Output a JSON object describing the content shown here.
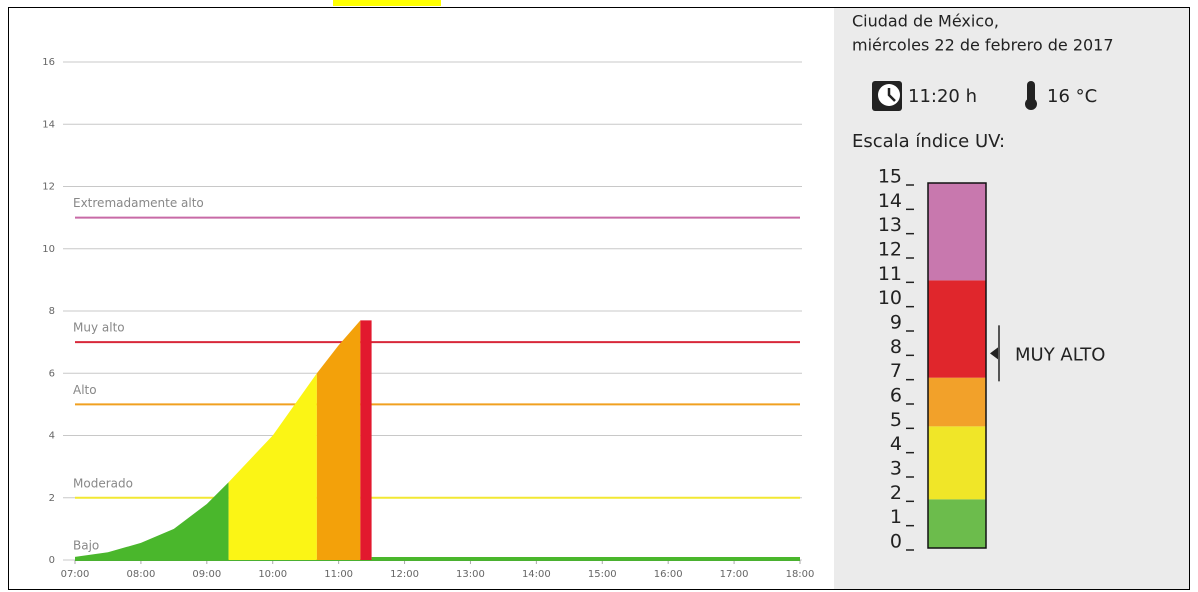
{
  "chart_data": {
    "type": "area",
    "xlim": [
      7,
      18
    ],
    "ylim": [
      0,
      16
    ],
    "xticks": [
      {
        "value": 7,
        "label": "07:00"
      },
      {
        "value": 8,
        "label": "08:00"
      },
      {
        "value": 9,
        "label": "09:00"
      },
      {
        "value": 10,
        "label": "10:00"
      },
      {
        "value": 11,
        "label": "11:00"
      },
      {
        "value": 12,
        "label": "12:00"
      },
      {
        "value": 13,
        "label": "13:00"
      },
      {
        "value": 14,
        "label": "14:00"
      },
      {
        "value": 15,
        "label": "15:00"
      },
      {
        "value": 16,
        "label": "16:00"
      },
      {
        "value": 17,
        "label": "17:00"
      },
      {
        "value": 18,
        "label": "18:00"
      }
    ],
    "yticks": [
      0,
      2,
      4,
      6,
      8,
      10,
      12,
      14,
      16
    ],
    "grid": true,
    "thresholds": [
      {
        "label": "Extremadamente alto",
        "value": 11,
        "color": "#c86aa6"
      },
      {
        "label": "Muy alto",
        "value": 7,
        "color": "#d8283a"
      },
      {
        "label": "Alto",
        "value": 5,
        "color": "#f0a020"
      },
      {
        "label": "Moderado",
        "value": 2,
        "color": "#f2e832"
      },
      {
        "label": "Bajo",
        "value": 0,
        "color": "#4ab030"
      }
    ],
    "series": [
      {
        "color": "#4ab72c",
        "x": [
          7,
          7.5,
          8,
          8.5,
          9,
          9.33
        ],
        "values": [
          0.1,
          0.25,
          0.55,
          1.0,
          1.8,
          2.5
        ]
      },
      {
        "color": "#fbf515",
        "x": [
          9.33,
          10,
          10.67
        ],
        "values": [
          2.5,
          4.0,
          6.0
        ]
      },
      {
        "color": "#f3a10a",
        "x": [
          10.67,
          11,
          11.33
        ],
        "values": [
          6.0,
          6.9,
          7.7
        ]
      },
      {
        "color": "#e2192e",
        "x": [
          11.33,
          11.5
        ],
        "values": [
          7.7,
          7.7
        ]
      },
      {
        "color": "#4ab72c",
        "kind": "line",
        "x": [
          11.5,
          18
        ],
        "values": [
          0.05,
          0.05
        ]
      }
    ]
  },
  "panel": {
    "city": "Ciudad de México,",
    "date": "miércoles 22 de febrero de 2017",
    "time": "11:20 h",
    "temperature": "16 °C",
    "scale_title": "Escala índice UV:",
    "scale_lim": [
      0,
      15
    ],
    "scale_ticks": [
      0,
      1,
      2,
      3,
      4,
      5,
      6,
      7,
      8,
      9,
      10,
      11,
      12,
      13,
      14,
      15
    ],
    "bands": [
      {
        "from": 0,
        "to": 2,
        "color": "#6cbc4c"
      },
      {
        "from": 2,
        "to": 5,
        "color": "#f0e628"
      },
      {
        "from": 5,
        "to": 7,
        "color": "#f2a12a"
      },
      {
        "from": 7,
        "to": 11,
        "color": "#e0262c"
      },
      {
        "from": 11,
        "to": 15,
        "color": "#c878ae"
      }
    ],
    "indicator": {
      "label": "MUY ALTO",
      "value": 8
    }
  }
}
